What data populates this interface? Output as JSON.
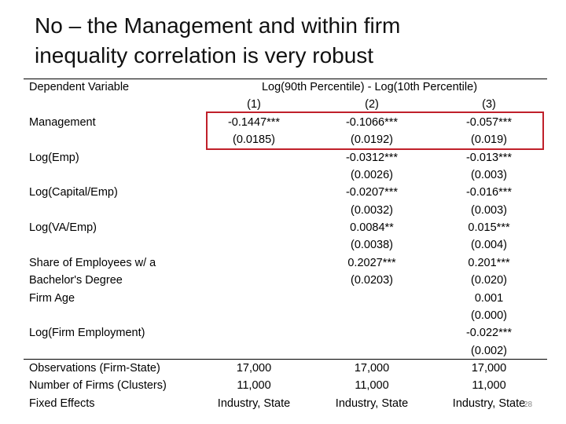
{
  "title_lines": [
    "No – the Management and within firm",
    "inequality correlation is very robust"
  ],
  "table": {
    "header": {
      "label": "Dependent Variable",
      "span": "Log(90th Percentile) - Log(10th Percentile)"
    },
    "rows": [
      {
        "label": null,
        "cells": [
          "(1)",
          "(2)",
          "(3)"
        ]
      },
      {
        "label": "Management",
        "cells": [
          "-0.1447***",
          "-0.1066***",
          "-0.057***"
        ]
      },
      {
        "label": null,
        "cells": [
          "(0.0185)",
          "(0.0192)",
          "(0.019)"
        ]
      },
      {
        "label": "Log(Emp)",
        "cells": [
          null,
          "-0.0312***",
          "-0.013***"
        ]
      },
      {
        "label": null,
        "cells": [
          null,
          "(0.0026)",
          "(0.003)"
        ]
      },
      {
        "label": "Log(Capital/Emp)",
        "cells": [
          null,
          "-0.0207***",
          "-0.016***"
        ]
      },
      {
        "label": null,
        "cells": [
          null,
          "(0.0032)",
          "(0.003)"
        ]
      },
      {
        "label": "Log(VA/Emp)",
        "cells": [
          null,
          "0.0084**",
          "0.015***"
        ]
      },
      {
        "label": null,
        "cells": [
          null,
          "(0.0038)",
          "(0.004)"
        ]
      },
      {
        "label": "Share of Employees w/ a",
        "cells": [
          null,
          "0.2027***",
          "0.201***"
        ]
      },
      {
        "label": "Bachelor's Degree",
        "cells": [
          null,
          "(0.0203)",
          "(0.020)"
        ]
      },
      {
        "label": "Firm Age",
        "cells": [
          null,
          null,
          "0.001"
        ]
      },
      {
        "label": null,
        "cells": [
          null,
          null,
          "(0.000)"
        ]
      },
      {
        "label": "Log(Firm Employment)",
        "cells": [
          null,
          null,
          "-0.022***"
        ]
      },
      {
        "label": null,
        "cells": [
          null,
          null,
          "(0.002)"
        ]
      },
      {
        "label": "Observations (Firm-State)",
        "cells": [
          "17,000",
          "17,000",
          "17,000"
        ]
      },
      {
        "label": "Number of Firms (Clusters)",
        "cells": [
          "11,000",
          "11,000",
          "11,000"
        ]
      },
      {
        "label": "Fixed Effects",
        "cells": [
          "Industry, State",
          "Industry, State",
          "Industry, State"
        ]
      }
    ]
  },
  "slide_number": "28"
}
